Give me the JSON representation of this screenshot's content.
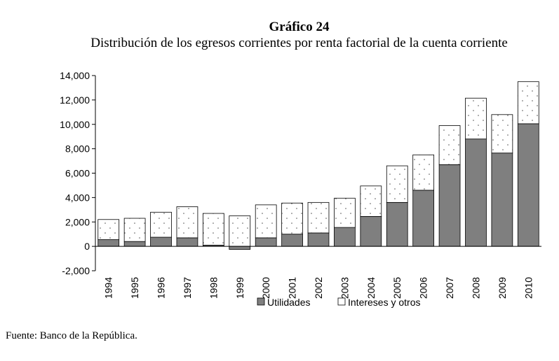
{
  "chart_data": {
    "type": "bar",
    "stacked": true,
    "title": "Gráfico 24",
    "subtitle": "Distribución de los egresos corrientes por renta factorial de la cuenta corriente",
    "categories": [
      "1994",
      "1995",
      "1996",
      "1997",
      "1998",
      "1999",
      "2000",
      "2001",
      "2002",
      "2003",
      "2004",
      "2005",
      "2006",
      "2007",
      "2008",
      "2009",
      "2010"
    ],
    "series": [
      {
        "name": "Utilidades",
        "color": "#7f7f7f",
        "values": [
          550,
          400,
          750,
          700,
          100,
          -250,
          700,
          1000,
          1100,
          1550,
          2450,
          3600,
          4600,
          6700,
          8800,
          7650,
          10050
        ]
      },
      {
        "name": "Intereses y otros",
        "color": "#ffffff",
        "values": [
          1650,
          1900,
          2050,
          2550,
          2600,
          2500,
          2700,
          2550,
          2500,
          2400,
          2500,
          3000,
          2900,
          3200,
          3350,
          3150,
          3450
        ]
      }
    ],
    "ylim": [
      -2000,
      14000
    ],
    "yticks": [
      "14,000",
      "12,000",
      "10,000",
      "8,000",
      "6,000",
      "4,000",
      "2,000",
      "0",
      "-2,000"
    ],
    "xlabel": "",
    "ylabel": "",
    "legend_position": "bottom",
    "source": "Fuente: Banco de la República."
  }
}
